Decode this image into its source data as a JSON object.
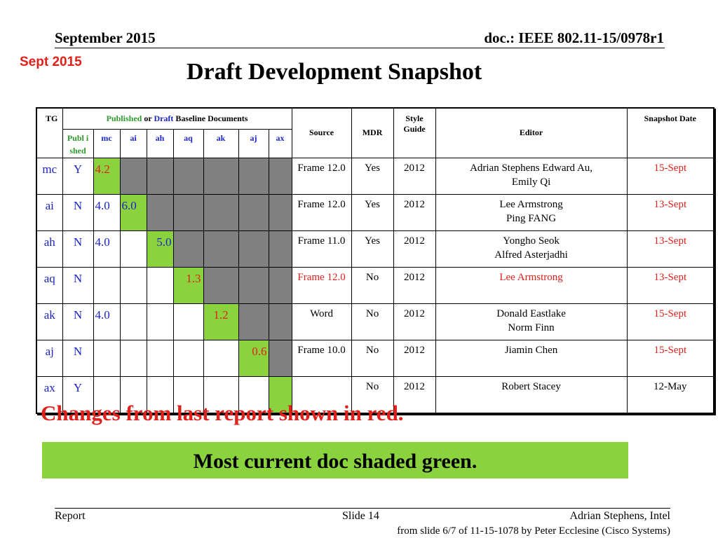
{
  "header": {
    "date": "September 2015",
    "doc": "doc.: IEEE 802.11-15/0978r1",
    "badge": "Sept 2015"
  },
  "title": "Draft Development Snapshot",
  "table": {
    "header": {
      "tg": "TG",
      "published_word": "Published",
      "or_word": " or ",
      "draft_word": "Draft",
      "baseline_rest": " Baseline Documents",
      "source": "Source",
      "mdr": "MDR",
      "style_guide": "Style Guide",
      "editor": "Editor",
      "snapshot_date": "Snapshot Date"
    },
    "subheaders": {
      "published": "Publ ished",
      "cols": [
        "mc",
        "ai",
        "ah",
        "aq",
        "ak",
        "aj",
        "ax"
      ]
    },
    "rows": [
      {
        "tg": "mc",
        "pub": "Y",
        "v": [
          "4.2",
          "",
          "",
          "",
          "",
          "",
          ""
        ],
        "source": "Frame 12.0",
        "mdr": "Yes",
        "style": "2012",
        "editor": "Adrian Stephens Edward Au, Emily Qi",
        "date": "15-Sept"
      },
      {
        "tg": "ai",
        "pub": "N",
        "v": [
          "4.0",
          "6.0",
          "",
          "",
          "",
          "",
          ""
        ],
        "source": "Frame 12.0",
        "mdr": "Yes",
        "style": "2012",
        "editor": "Lee Armstrong Ping FANG",
        "date": "13-Sept"
      },
      {
        "tg": "ah",
        "pub": "N",
        "v": [
          "4.0",
          "",
          "5.0",
          "",
          "",
          "",
          ""
        ],
        "source": "Frame 11.0",
        "mdr": "Yes",
        "style": "2012",
        "editor": "Yongho Seok Alfred Asterjadhi",
        "date": "13-Sept"
      },
      {
        "tg": "aq",
        "pub": "N",
        "v": [
          "",
          "",
          "",
          "1.3",
          "",
          "",
          ""
        ],
        "source": "Frame 12.0",
        "mdr": "No",
        "style": "2012",
        "editor": "Lee Armstrong",
        "date": "13-Sept"
      },
      {
        "tg": "ak",
        "pub": "N",
        "v": [
          "4.0",
          "",
          "",
          "",
          "1.2",
          "",
          ""
        ],
        "source": "Word",
        "mdr": "No",
        "style": "2012",
        "editor": "Donald Eastlake Norm Finn",
        "date": "15-Sept"
      },
      {
        "tg": "aj",
        "pub": "N",
        "v": [
          "",
          "",
          "",
          "",
          "",
          "0.6",
          ""
        ],
        "source": "Frame 10.0",
        "mdr": "No",
        "style": "2012",
        "editor": "Jiamin Chen",
        "date": "15-Sept"
      },
      {
        "tg": "ax",
        "pub": "Y",
        "v": [
          "",
          "",
          "",
          "",
          "",
          "",
          ""
        ],
        "source": "",
        "mdr": "No",
        "style": "2012",
        "editor": "Robert Stacey",
        "date": "12-May"
      }
    ],
    "cell_states": [
      [
        "grn",
        "gray",
        "gray",
        "gray",
        "gray",
        "gray",
        "gray"
      ],
      [
        "none",
        "grn",
        "gray",
        "gray",
        "gray",
        "gray",
        "gray"
      ],
      [
        "none",
        "none",
        "grn",
        "gray",
        "gray",
        "gray",
        "gray"
      ],
      [
        "none",
        "none",
        "none",
        "grn",
        "gray",
        "gray",
        "gray"
      ],
      [
        "none",
        "none",
        "none",
        "none",
        "grn",
        "gray",
        "gray"
      ],
      [
        "none",
        "none",
        "none",
        "none",
        "none",
        "grn",
        "gray"
      ],
      [
        "none",
        "none",
        "none",
        "none",
        "none",
        "none",
        "grn"
      ]
    ],
    "colors": {
      "red": "#e0201a",
      "blue": "#1a22c8",
      "green_fill": "#8ad33f",
      "gray_fill": "#808080"
    }
  },
  "notes": {
    "changes": "Changes from  last report shown in red.",
    "green": "Most current doc shaded green."
  },
  "footer": {
    "left": "Report",
    "slide": "Slide 14",
    "author": "Adrian Stephens, Intel",
    "source": "from slide 6/7 of 11-15-1078 by Peter Ecclesine (Cisco Systems)"
  }
}
